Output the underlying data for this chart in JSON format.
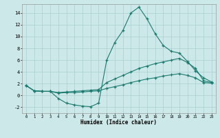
{
  "xlabel": "Humidex (Indice chaleur)",
  "background_color": "#cce8e8",
  "grid_color": "#aacfcf",
  "line_color": "#1a7a6e",
  "xlim": [
    -0.5,
    23.5
  ],
  "ylim": [
    -3.0,
    15.5
  ],
  "xticks": [
    0,
    1,
    2,
    3,
    4,
    5,
    6,
    7,
    8,
    9,
    10,
    11,
    12,
    13,
    14,
    15,
    16,
    17,
    18,
    19,
    20,
    21,
    22,
    23
  ],
  "yticks": [
    -2,
    0,
    2,
    4,
    6,
    8,
    10,
    12,
    14
  ],
  "line1_x": [
    0,
    1,
    2,
    3,
    4,
    5,
    6,
    7,
    8,
    9,
    10,
    11,
    12,
    13,
    14,
    15,
    16,
    17,
    18,
    19,
    20,
    21,
    22,
    23
  ],
  "line1_y": [
    1.7,
    0.8,
    0.7,
    0.7,
    -0.5,
    -1.3,
    -1.6,
    -1.8,
    -1.9,
    -1.3,
    6.0,
    9.0,
    11.0,
    14.0,
    15.0,
    13.0,
    10.5,
    8.5,
    7.5,
    7.2,
    5.8,
    4.2,
    3.0,
    2.3
  ],
  "line2_x": [
    0,
    1,
    2,
    3,
    4,
    5,
    6,
    7,
    8,
    9,
    10,
    11,
    12,
    13,
    14,
    15,
    16,
    17,
    18,
    19,
    20,
    21,
    22,
    23
  ],
  "line2_y": [
    1.7,
    0.8,
    0.7,
    0.7,
    0.5,
    0.6,
    0.7,
    0.8,
    0.9,
    1.0,
    2.2,
    2.8,
    3.4,
    4.0,
    4.6,
    5.0,
    5.4,
    5.7,
    6.0,
    6.3,
    5.6,
    4.6,
    2.5,
    2.2
  ],
  "line3_x": [
    0,
    1,
    2,
    3,
    4,
    5,
    6,
    7,
    8,
    9,
    10,
    11,
    12,
    13,
    14,
    15,
    16,
    17,
    18,
    19,
    20,
    21,
    22,
    23
  ],
  "line3_y": [
    1.7,
    0.8,
    0.7,
    0.7,
    0.4,
    0.5,
    0.5,
    0.6,
    0.7,
    0.8,
    1.2,
    1.5,
    1.8,
    2.2,
    2.5,
    2.8,
    3.0,
    3.3,
    3.5,
    3.7,
    3.4,
    3.0,
    2.2,
    2.1
  ]
}
